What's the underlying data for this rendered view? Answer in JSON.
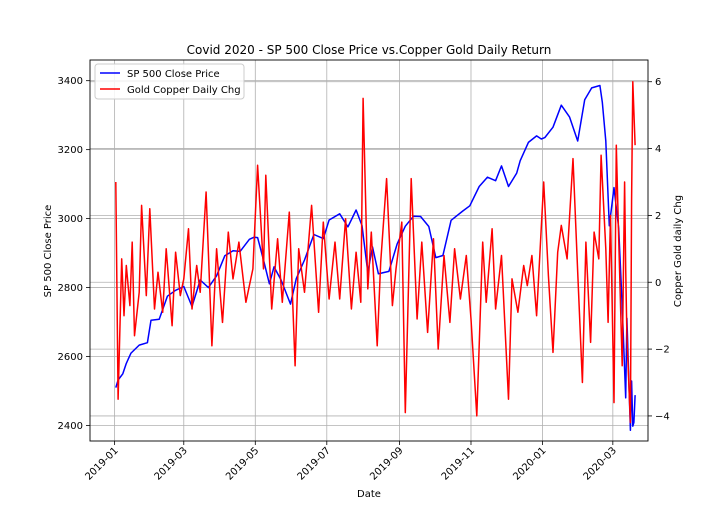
{
  "chart_data": {
    "type": "line",
    "title": "Covid 2020 - SP 500 Close Price vs.Copper Gold Daily Return",
    "xlabel": "Date",
    "ylabel_left": "SP 500 Close Price",
    "ylabel_right": "Copper Gold daily Chg",
    "grid": true,
    "legend_position": "upper-left",
    "xlim": [
      "2018-12-11",
      "2020-03-31"
    ],
    "ylim_left": [
      2355,
      3460
    ],
    "ylim_right": [
      -4.75,
      6.65
    ],
    "x_ticks": [
      "2019-01",
      "2019-03",
      "2019-05",
      "2019-07",
      "2019-09",
      "2019-11",
      "2020-01",
      "2020-03"
    ],
    "y_ticks_left": [
      2400,
      2600,
      2800,
      3000,
      3200,
      3400
    ],
    "y_ticks_right": [
      -4,
      -2,
      0,
      2,
      4,
      6
    ],
    "series": [
      {
        "name": "SP 500 Close Price",
        "axis": "left",
        "color": "#0000ff",
        "points": [
          [
            "2019-01-02",
            2510
          ],
          [
            "2019-01-04",
            2532
          ],
          [
            "2019-01-08",
            2550
          ],
          [
            "2019-01-11",
            2580
          ],
          [
            "2019-01-15",
            2610
          ],
          [
            "2019-01-22",
            2633
          ],
          [
            "2019-01-29",
            2640
          ],
          [
            "2019-02-01",
            2705
          ],
          [
            "2019-02-08",
            2708
          ],
          [
            "2019-02-15",
            2775
          ],
          [
            "2019-02-22",
            2792
          ],
          [
            "2019-03-01",
            2803
          ],
          [
            "2019-03-08",
            2745
          ],
          [
            "2019-03-15",
            2822
          ],
          [
            "2019-03-22",
            2800
          ],
          [
            "2019-03-29",
            2834
          ],
          [
            "2019-04-05",
            2892
          ],
          [
            "2019-04-12",
            2907
          ],
          [
            "2019-04-18",
            2905
          ],
          [
            "2019-04-26",
            2940
          ],
          [
            "2019-04-30",
            2946
          ],
          [
            "2019-05-03",
            2945
          ],
          [
            "2019-05-08",
            2880
          ],
          [
            "2019-05-13",
            2811
          ],
          [
            "2019-05-17",
            2860
          ],
          [
            "2019-05-23",
            2822
          ],
          [
            "2019-05-31",
            2752
          ],
          [
            "2019-06-05",
            2826
          ],
          [
            "2019-06-12",
            2880
          ],
          [
            "2019-06-20",
            2954
          ],
          [
            "2019-06-28",
            2942
          ],
          [
            "2019-07-03",
            2996
          ],
          [
            "2019-07-12",
            3014
          ],
          [
            "2019-07-19",
            2976
          ],
          [
            "2019-07-26",
            3025
          ],
          [
            "2019-07-31",
            2980
          ],
          [
            "2019-08-05",
            2844
          ],
          [
            "2019-08-09",
            2918
          ],
          [
            "2019-08-14",
            2840
          ],
          [
            "2019-08-23",
            2847
          ],
          [
            "2019-08-30",
            2926
          ],
          [
            "2019-09-06",
            2978
          ],
          [
            "2019-09-13",
            3007
          ],
          [
            "2019-09-19",
            3006
          ],
          [
            "2019-09-26",
            2977
          ],
          [
            "2019-10-02",
            2887
          ],
          [
            "2019-10-08",
            2893
          ],
          [
            "2019-10-15",
            2995
          ],
          [
            "2019-10-25",
            3022
          ],
          [
            "2019-10-31",
            3037
          ],
          [
            "2019-11-08",
            3093
          ],
          [
            "2019-11-15",
            3120
          ],
          [
            "2019-11-22",
            3110
          ],
          [
            "2019-11-27",
            3153
          ],
          [
            "2019-12-03",
            3093
          ],
          [
            "2019-12-10",
            3132
          ],
          [
            "2019-12-13",
            3168
          ],
          [
            "2019-12-20",
            3221
          ],
          [
            "2019-12-27",
            3240
          ],
          [
            "2019-12-31",
            3231
          ],
          [
            "2020-01-03",
            3235
          ],
          [
            "2020-01-10",
            3265
          ],
          [
            "2020-01-17",
            3329
          ],
          [
            "2020-01-24",
            3295
          ],
          [
            "2020-01-31",
            3225
          ],
          [
            "2020-02-06",
            3345
          ],
          [
            "2020-02-12",
            3379
          ],
          [
            "2020-02-19",
            3386
          ],
          [
            "2020-02-21",
            3338
          ],
          [
            "2020-02-24",
            3225
          ],
          [
            "2020-02-27",
            2979
          ],
          [
            "2020-03-02",
            3090
          ],
          [
            "2020-03-06",
            2972
          ],
          [
            "2020-03-09",
            2746
          ],
          [
            "2020-03-12",
            2480
          ],
          [
            "2020-03-13",
            2711
          ],
          [
            "2020-03-16",
            2386
          ],
          [
            "2020-03-17",
            2529
          ],
          [
            "2020-03-18",
            2398
          ],
          [
            "2020-03-19",
            2409
          ],
          [
            "2020-03-20",
            2488
          ]
        ]
      },
      {
        "name": "Gold Copper Daily Chg",
        "axis": "right",
        "color": "#ff0000",
        "points": [
          [
            "2019-01-02",
            3.0
          ],
          [
            "2019-01-04",
            -3.5
          ],
          [
            "2019-01-07",
            0.7
          ],
          [
            "2019-01-09",
            -1.0
          ],
          [
            "2019-01-11",
            0.5
          ],
          [
            "2019-01-14",
            -0.7
          ],
          [
            "2019-01-16",
            1.2
          ],
          [
            "2019-01-18",
            -1.6
          ],
          [
            "2019-01-22",
            -0.3
          ],
          [
            "2019-01-24",
            2.3
          ],
          [
            "2019-01-28",
            -0.4
          ],
          [
            "2019-01-31",
            2.2
          ],
          [
            "2019-02-04",
            -0.8
          ],
          [
            "2019-02-07",
            0.3
          ],
          [
            "2019-02-11",
            -0.9
          ],
          [
            "2019-02-14",
            1.0
          ],
          [
            "2019-02-19",
            -1.3
          ],
          [
            "2019-02-22",
            0.9
          ],
          [
            "2019-02-26",
            -0.4
          ],
          [
            "2019-03-01",
            0.1
          ],
          [
            "2019-03-05",
            1.6
          ],
          [
            "2019-03-08",
            -0.8
          ],
          [
            "2019-03-12",
            0.5
          ],
          [
            "2019-03-15",
            -0.3
          ],
          [
            "2019-03-20",
            2.7
          ],
          [
            "2019-03-25",
            -1.9
          ],
          [
            "2019-03-29",
            1.0
          ],
          [
            "2019-04-03",
            -1.2
          ],
          [
            "2019-04-08",
            1.5
          ],
          [
            "2019-04-12",
            0.1
          ],
          [
            "2019-04-17",
            1.2
          ],
          [
            "2019-04-23",
            -0.6
          ],
          [
            "2019-04-29",
            0.4
          ],
          [
            "2019-05-03",
            3.5
          ],
          [
            "2019-05-08",
            0.4
          ],
          [
            "2019-05-10",
            3.2
          ],
          [
            "2019-05-15",
            -0.8
          ],
          [
            "2019-05-20",
            1.3
          ],
          [
            "2019-05-24",
            -0.6
          ],
          [
            "2019-05-30",
            2.1
          ],
          [
            "2019-06-04",
            -2.5
          ],
          [
            "2019-06-07",
            1.0
          ],
          [
            "2019-06-12",
            -0.3
          ],
          [
            "2019-06-18",
            2.3
          ],
          [
            "2019-06-24",
            -0.9
          ],
          [
            "2019-06-28",
            1.8
          ],
          [
            "2019-07-03",
            -0.5
          ],
          [
            "2019-07-08",
            1.2
          ],
          [
            "2019-07-12",
            -0.5
          ],
          [
            "2019-07-17",
            1.9
          ],
          [
            "2019-07-22",
            -0.8
          ],
          [
            "2019-07-26",
            0.9
          ],
          [
            "2019-07-30",
            -0.6
          ],
          [
            "2019-08-01",
            5.5
          ],
          [
            "2019-08-05",
            -0.2
          ],
          [
            "2019-08-08",
            1.5
          ],
          [
            "2019-08-13",
            -1.9
          ],
          [
            "2019-08-16",
            0.6
          ],
          [
            "2019-08-21",
            3.1
          ],
          [
            "2019-08-26",
            -0.7
          ],
          [
            "2019-08-29",
            0.4
          ],
          [
            "2019-09-03",
            1.8
          ],
          [
            "2019-09-06",
            -3.9
          ],
          [
            "2019-09-11",
            3.1
          ],
          [
            "2019-09-16",
            -1.1
          ],
          [
            "2019-09-20",
            1.2
          ],
          [
            "2019-09-25",
            -1.5
          ],
          [
            "2019-09-30",
            1.3
          ],
          [
            "2019-10-04",
            -2.0
          ],
          [
            "2019-10-09",
            0.8
          ],
          [
            "2019-10-14",
            -1.2
          ],
          [
            "2019-10-18",
            1.0
          ],
          [
            "2019-10-23",
            -0.5
          ],
          [
            "2019-10-28",
            0.8
          ],
          [
            "2019-11-01",
            -1.1
          ],
          [
            "2019-11-06",
            -4.0
          ],
          [
            "2019-11-11",
            1.2
          ],
          [
            "2019-11-14",
            -0.6
          ],
          [
            "2019-11-19",
            1.6
          ],
          [
            "2019-11-22",
            -0.8
          ],
          [
            "2019-11-27",
            0.8
          ],
          [
            "2019-12-03",
            -3.5
          ],
          [
            "2019-12-06",
            0.1
          ],
          [
            "2019-12-11",
            -0.9
          ],
          [
            "2019-12-16",
            0.5
          ],
          [
            "2019-12-19",
            -0.1
          ],
          [
            "2019-12-23",
            0.8
          ],
          [
            "2019-12-27",
            -1.0
          ],
          [
            "2020-01-02",
            3.0
          ],
          [
            "2020-01-06",
            0.2
          ],
          [
            "2020-01-10",
            -2.1
          ],
          [
            "2020-01-14",
            0.9
          ],
          [
            "2020-01-17",
            1.7
          ],
          [
            "2020-01-22",
            0.7
          ],
          [
            "2020-01-27",
            3.7
          ],
          [
            "2020-01-31",
            0.3
          ],
          [
            "2020-02-04",
            -3.0
          ],
          [
            "2020-02-07",
            1.2
          ],
          [
            "2020-02-11",
            -1.8
          ],
          [
            "2020-02-14",
            1.5
          ],
          [
            "2020-02-18",
            0.7
          ],
          [
            "2020-02-20",
            3.8
          ],
          [
            "2020-02-24",
            1.0
          ],
          [
            "2020-02-26",
            -1.2
          ],
          [
            "2020-02-28",
            2.0
          ],
          [
            "2020-03-02",
            -3.6
          ],
          [
            "2020-03-04",
            4.1
          ],
          [
            "2020-03-06",
            1.3
          ],
          [
            "2020-03-09",
            -2.5
          ],
          [
            "2020-03-11",
            3.0
          ],
          [
            "2020-03-12",
            0.4
          ],
          [
            "2020-03-13",
            -1.6
          ],
          [
            "2020-03-16",
            -4.2
          ],
          [
            "2020-03-17",
            2.5
          ],
          [
            "2020-03-18",
            6.0
          ],
          [
            "2020-03-20",
            4.1
          ]
        ]
      }
    ]
  }
}
